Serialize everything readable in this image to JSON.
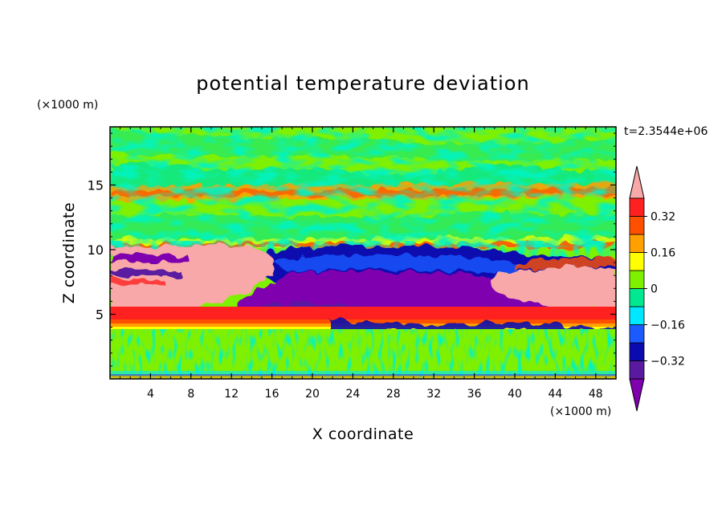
{
  "chart_data": {
    "type": "heatmap",
    "title": "potential temperature deviation",
    "xlabel": "X coordinate",
    "ylabel": "Z coordinate",
    "x_unit": "(×1000 m)",
    "y_unit": "(×1000 m)",
    "time_label": "t=2.3544e+06",
    "xlim": [
      0,
      50
    ],
    "ylim": [
      0,
      19.5
    ],
    "x_ticks": [
      4,
      8,
      12,
      16,
      20,
      24,
      28,
      32,
      36,
      40,
      44,
      48
    ],
    "y_ticks": [
      5,
      10,
      15
    ],
    "colorbar": {
      "levels": [
        -0.4,
        -0.32,
        -0.24,
        -0.16,
        -0.08,
        0,
        0.08,
        0.16,
        0.24,
        0.32,
        0.4
      ],
      "tick_labels": [
        "0.32",
        "0.16",
        "0",
        "−0.16",
        "−0.32"
      ],
      "tick_values": [
        0.32,
        0.16,
        0,
        -0.16,
        -0.32
      ],
      "colors": [
        "#7f00ae",
        "#5a1aa0",
        "#0a0aaf",
        "#1a5aff",
        "#00e8ff",
        "#00e890",
        "#7ff000",
        "#ffff00",
        "#ffa000",
        "#ff5000",
        "#ff2020",
        "#f8a8a8"
      ],
      "extend": "both"
    }
  }
}
